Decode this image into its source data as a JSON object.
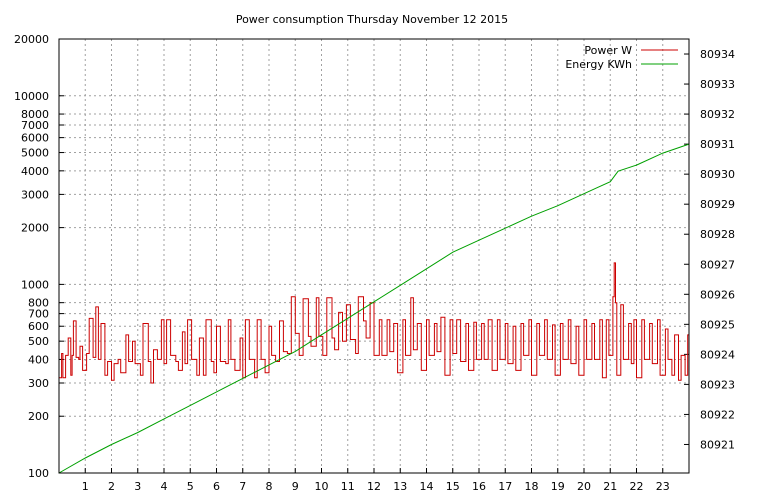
{
  "chart_data": {
    "type": "line",
    "title": "Power consumption Thursday November 12 2015",
    "xlabel": "",
    "ylabel": "",
    "y2label": "",
    "grid": true,
    "legend_position": "top-right",
    "x_ticks": [
      "1",
      "2",
      "3",
      "4",
      "5",
      "6",
      "7",
      "8",
      "9",
      "10",
      "11",
      "12",
      "13",
      "14",
      "15",
      "16",
      "17",
      "18",
      "19",
      "20",
      "21",
      "22",
      "23"
    ],
    "xlim": [
      0,
      24
    ],
    "y_scale": "log",
    "ylim": [
      100,
      20000
    ],
    "y_ticks": [
      {
        "value": 100,
        "label": "100"
      },
      {
        "value": 200,
        "label": "200"
      },
      {
        "value": 300,
        "label": "300"
      },
      {
        "value": 400,
        "label": "400"
      },
      {
        "value": 500,
        "label": "500"
      },
      {
        "value": 600,
        "label": "600"
      },
      {
        "value": 700,
        "label": "700"
      },
      {
        "value": 800,
        "label": "800"
      },
      {
        "value": 1000,
        "label": "1000"
      },
      {
        "value": 2000,
        "label": "2000"
      },
      {
        "value": 3000,
        "label": "3000"
      },
      {
        "value": 4000,
        "label": "4000"
      },
      {
        "value": 5000,
        "label": "5000"
      },
      {
        "value": 6000,
        "label": "6000"
      },
      {
        "value": 7000,
        "label": "7000"
      },
      {
        "value": 8000,
        "label": "8000"
      },
      {
        "value": 10000,
        "label": "10000"
      },
      {
        "value": 20000,
        "label": "20000"
      }
    ],
    "y2lim": [
      80920.05,
      80934.5
    ],
    "y2_ticks": [
      "80921",
      "80922",
      "80923",
      "80924",
      "80925",
      "80926",
      "80927",
      "80928",
      "80929",
      "80930",
      "80931",
      "80932",
      "80933",
      "80934"
    ],
    "series": [
      {
        "name": "Power W",
        "axis": "left",
        "color": "#cc0000",
        "x": [
          0,
          0.1,
          0.15,
          0.25,
          0.35,
          0.45,
          0.5,
          0.55,
          0.65,
          0.75,
          0.8,
          0.9,
          1.05,
          1.15,
          1.3,
          1.4,
          1.5,
          1.6,
          1.75,
          1.85,
          2.0,
          2.1,
          2.25,
          2.35,
          2.55,
          2.65,
          2.8,
          2.9,
          3.1,
          3.2,
          3.4,
          3.5,
          3.6,
          3.75,
          3.9,
          4.0,
          4.1,
          4.25,
          4.45,
          4.55,
          4.7,
          4.8,
          4.9,
          5.05,
          5.25,
          5.35,
          5.5,
          5.6,
          5.8,
          5.9,
          6.0,
          6.15,
          6.35,
          6.45,
          6.55,
          6.7,
          6.9,
          7.0,
          7.1,
          7.25,
          7.45,
          7.55,
          7.7,
          7.85,
          8.0,
          8.1,
          8.25,
          8.4,
          8.55,
          8.7,
          8.85,
          9.0,
          9.15,
          9.3,
          9.5,
          9.6,
          9.8,
          9.9,
          10.05,
          10.2,
          10.4,
          10.5,
          10.65,
          10.8,
          10.95,
          11.1,
          11.3,
          11.4,
          11.6,
          11.7,
          11.85,
          12.0,
          12.2,
          12.3,
          12.5,
          12.6,
          12.75,
          12.9,
          13.1,
          13.2,
          13.4,
          13.5,
          13.65,
          13.8,
          14.0,
          14.1,
          14.3,
          14.4,
          14.55,
          14.7,
          14.9,
          15.0,
          15.15,
          15.3,
          15.5,
          15.6,
          15.8,
          15.9,
          16.1,
          16.2,
          16.35,
          16.5,
          16.7,
          16.8,
          17.0,
          17.1,
          17.3,
          17.4,
          17.6,
          17.7,
          17.9,
          18.0,
          18.2,
          18.3,
          18.5,
          18.6,
          18.8,
          18.9,
          19.1,
          19.2,
          19.4,
          19.5,
          19.7,
          19.8,
          20.0,
          20.1,
          20.3,
          20.4,
          20.6,
          20.7,
          20.85,
          20.95,
          21.1,
          21.15,
          21.2,
          21.25,
          21.4,
          21.5,
          21.7,
          21.8,
          21.9,
          22.0,
          22.2,
          22.3,
          22.5,
          22.6,
          22.8,
          22.9,
          23.1,
          23.2,
          23.35,
          23.45,
          23.6,
          23.7,
          23.85,
          23.95
        ],
        "values": [
          320,
          430,
          320,
          420,
          520,
          330,
          420,
          640,
          410,
          400,
          470,
          350,
          430,
          660,
          410,
          760,
          400,
          620,
          330,
          390,
          310,
          380,
          400,
          340,
          540,
          390,
          500,
          380,
          330,
          620,
          390,
          300,
          450,
          400,
          650,
          380,
          650,
          420,
          390,
          350,
          560,
          380,
          650,
          400,
          330,
          520,
          330,
          650,
          390,
          340,
          600,
          390,
          380,
          650,
          400,
          350,
          520,
          320,
          650,
          400,
          320,
          650,
          400,
          340,
          600,
          420,
          390,
          640,
          440,
          430,
          860,
          550,
          420,
          840,
          530,
          470,
          850,
          530,
          420,
          850,
          520,
          450,
          710,
          500,
          780,
          510,
          430,
          860,
          640,
          520,
          800,
          420,
          650,
          420,
          650,
          440,
          620,
          340,
          650,
          420,
          850,
          450,
          620,
          350,
          650,
          420,
          620,
          440,
          670,
          330,
          650,
          430,
          650,
          390,
          620,
          350,
          630,
          400,
          620,
          400,
          650,
          350,
          650,
          400,
          620,
          380,
          600,
          350,
          620,
          420,
          650,
          330,
          620,
          420,
          650,
          400,
          610,
          330,
          620,
          400,
          650,
          380,
          600,
          330,
          650,
          400,
          620,
          400,
          650,
          320,
          650,
          420,
          860,
          1300,
          800,
          330,
          780,
          400,
          620,
          380,
          650,
          320,
          650,
          400,
          620,
          380,
          650,
          330,
          580,
          400,
          330,
          540,
          310,
          420,
          330,
          540
        ]
      },
      {
        "name": "Energy KWh",
        "axis": "right",
        "color": "#00a000",
        "x": [
          0,
          1,
          2,
          3,
          4,
          5,
          6,
          7,
          8,
          9,
          10,
          11,
          12,
          13,
          14,
          15,
          16,
          17,
          18,
          19,
          20,
          20.5,
          21,
          21.3,
          22,
          23,
          24
        ],
        "values": [
          80920.05,
          80920.55,
          80921.0,
          80921.4,
          80921.85,
          80922.3,
          80922.75,
          80923.2,
          80923.65,
          80924.1,
          80924.65,
          80925.2,
          80925.75,
          80926.3,
          80926.85,
          80927.4,
          80927.8,
          80928.2,
          80928.6,
          80928.95,
          80929.35,
          80929.55,
          80929.75,
          80930.1,
          80930.3,
          80930.7,
          80931.0
        ]
      }
    ]
  }
}
